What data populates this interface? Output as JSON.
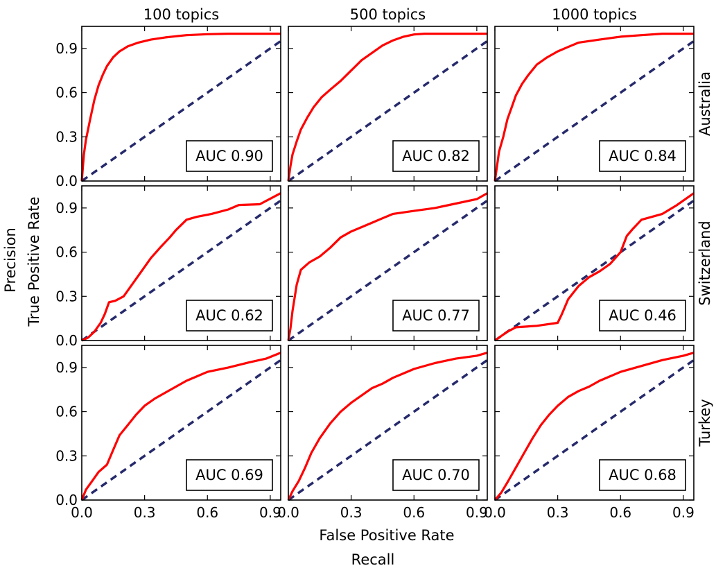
{
  "chart_data": {
    "type": "line",
    "xlabel": "False Positive Rate",
    "ylabel": "True Positive Rate",
    "outer_xlabel": "Recall",
    "outer_ylabel": "Precision",
    "xlim": [
      0,
      0.95
    ],
    "ylim": [
      0,
      1.05
    ],
    "xticks": [
      "0.0",
      "0.3",
      "0.6",
      "0.9"
    ],
    "yticks": [
      "0.0",
      "0.3",
      "0.6",
      "0.9"
    ],
    "columns": [
      "100 topics",
      "500 topics",
      "1000 topics"
    ],
    "rows": [
      "Australia",
      "Switzerland",
      "Turkey"
    ],
    "colors": {
      "roc": "#ff0000",
      "chance": "#262a6b"
    },
    "grid": false,
    "panels": [
      [
        {
          "auc": "AUC 0.90",
          "roc": [
            [
              0,
              0
            ],
            [
              0.01,
              0.18
            ],
            [
              0.02,
              0.28
            ],
            [
              0.04,
              0.42
            ],
            [
              0.06,
              0.55
            ],
            [
              0.08,
              0.65
            ],
            [
              0.1,
              0.72
            ],
            [
              0.12,
              0.78
            ],
            [
              0.15,
              0.84
            ],
            [
              0.18,
              0.88
            ],
            [
              0.22,
              0.915
            ],
            [
              0.27,
              0.94
            ],
            [
              0.33,
              0.96
            ],
            [
              0.4,
              0.975
            ],
            [
              0.5,
              0.99
            ],
            [
              0.6,
              0.997
            ],
            [
              0.7,
              1.0
            ],
            [
              0.95,
              1.0
            ]
          ]
        },
        {
          "auc": "AUC 0.82",
          "roc": [
            [
              0,
              0
            ],
            [
              0.01,
              0.1
            ],
            [
              0.02,
              0.18
            ],
            [
              0.04,
              0.27
            ],
            [
              0.06,
              0.35
            ],
            [
              0.09,
              0.43
            ],
            [
              0.12,
              0.5
            ],
            [
              0.16,
              0.57
            ],
            [
              0.2,
              0.62
            ],
            [
              0.25,
              0.68
            ],
            [
              0.3,
              0.75
            ],
            [
              0.35,
              0.82
            ],
            [
              0.4,
              0.87
            ],
            [
              0.45,
              0.92
            ],
            [
              0.5,
              0.955
            ],
            [
              0.55,
              0.98
            ],
            [
              0.6,
              0.995
            ],
            [
              0.65,
              1.0
            ],
            [
              0.95,
              1.0
            ]
          ]
        },
        {
          "auc": "AUC 0.84",
          "roc": [
            [
              0,
              0
            ],
            [
              0.01,
              0.1
            ],
            [
              0.02,
              0.2
            ],
            [
              0.04,
              0.3
            ],
            [
              0.06,
              0.42
            ],
            [
              0.08,
              0.5
            ],
            [
              0.1,
              0.58
            ],
            [
              0.13,
              0.66
            ],
            [
              0.16,
              0.72
            ],
            [
              0.2,
              0.79
            ],
            [
              0.25,
              0.84
            ],
            [
              0.3,
              0.88
            ],
            [
              0.35,
              0.91
            ],
            [
              0.4,
              0.94
            ],
            [
              0.5,
              0.96
            ],
            [
              0.6,
              0.98
            ],
            [
              0.7,
              0.99
            ],
            [
              0.8,
              1.0
            ],
            [
              0.95,
              1.0
            ]
          ]
        }
      ],
      [
        {
          "auc": "AUC 0.62",
          "roc": [
            [
              0,
              0
            ],
            [
              0.03,
              0.02
            ],
            [
              0.06,
              0.06
            ],
            [
              0.09,
              0.12
            ],
            [
              0.11,
              0.18
            ],
            [
              0.13,
              0.26
            ],
            [
              0.16,
              0.27
            ],
            [
              0.2,
              0.3
            ],
            [
              0.24,
              0.38
            ],
            [
              0.28,
              0.46
            ],
            [
              0.33,
              0.56
            ],
            [
              0.38,
              0.64
            ],
            [
              0.42,
              0.7
            ],
            [
              0.45,
              0.75
            ],
            [
              0.5,
              0.82
            ],
            [
              0.55,
              0.84
            ],
            [
              0.62,
              0.86
            ],
            [
              0.7,
              0.89
            ],
            [
              0.75,
              0.92
            ],
            [
              0.85,
              0.925
            ],
            [
              0.95,
              1.0
            ]
          ]
        },
        {
          "auc": "AUC 0.77",
          "roc": [
            [
              0,
              0
            ],
            [
              0.01,
              0.08
            ],
            [
              0.02,
              0.2
            ],
            [
              0.04,
              0.38
            ],
            [
              0.06,
              0.48
            ],
            [
              0.1,
              0.53
            ],
            [
              0.15,
              0.57
            ],
            [
              0.2,
              0.63
            ],
            [
              0.25,
              0.7
            ],
            [
              0.3,
              0.74
            ],
            [
              0.35,
              0.77
            ],
            [
              0.4,
              0.8
            ],
            [
              0.45,
              0.83
            ],
            [
              0.5,
              0.86
            ],
            [
              0.6,
              0.88
            ],
            [
              0.7,
              0.9
            ],
            [
              0.8,
              0.93
            ],
            [
              0.9,
              0.96
            ],
            [
              0.95,
              1.0
            ]
          ]
        },
        {
          "auc": "AUC 0.46",
          "roc": [
            [
              0,
              0
            ],
            [
              0.03,
              0.03
            ],
            [
              0.06,
              0.06
            ],
            [
              0.1,
              0.09
            ],
            [
              0.2,
              0.1
            ],
            [
              0.3,
              0.12
            ],
            [
              0.32,
              0.18
            ],
            [
              0.35,
              0.28
            ],
            [
              0.4,
              0.37
            ],
            [
              0.45,
              0.43
            ],
            [
              0.5,
              0.47
            ],
            [
              0.55,
              0.52
            ],
            [
              0.6,
              0.6
            ],
            [
              0.63,
              0.71
            ],
            [
              0.66,
              0.76
            ],
            [
              0.7,
              0.82
            ],
            [
              0.8,
              0.86
            ],
            [
              0.87,
              0.92
            ],
            [
              0.95,
              1.0
            ]
          ]
        }
      ],
      [
        {
          "auc": "AUC 0.69",
          "roc": [
            [
              0,
              0
            ],
            [
              0.02,
              0.07
            ],
            [
              0.05,
              0.13
            ],
            [
              0.08,
              0.19
            ],
            [
              0.12,
              0.24
            ],
            [
              0.15,
              0.34
            ],
            [
              0.18,
              0.44
            ],
            [
              0.22,
              0.51
            ],
            [
              0.26,
              0.58
            ],
            [
              0.3,
              0.64
            ],
            [
              0.35,
              0.69
            ],
            [
              0.4,
              0.73
            ],
            [
              0.45,
              0.77
            ],
            [
              0.5,
              0.81
            ],
            [
              0.55,
              0.84
            ],
            [
              0.6,
              0.87
            ],
            [
              0.7,
              0.9
            ],
            [
              0.8,
              0.935
            ],
            [
              0.88,
              0.96
            ],
            [
              0.95,
              1.0
            ]
          ]
        },
        {
          "auc": "AUC 0.70",
          "roc": [
            [
              0,
              0
            ],
            [
              0.02,
              0.06
            ],
            [
              0.05,
              0.13
            ],
            [
              0.08,
              0.22
            ],
            [
              0.11,
              0.32
            ],
            [
              0.15,
              0.42
            ],
            [
              0.2,
              0.52
            ],
            [
              0.25,
              0.6
            ],
            [
              0.3,
              0.66
            ],
            [
              0.35,
              0.71
            ],
            [
              0.4,
              0.76
            ],
            [
              0.45,
              0.79
            ],
            [
              0.5,
              0.83
            ],
            [
              0.55,
              0.86
            ],
            [
              0.6,
              0.89
            ],
            [
              0.7,
              0.93
            ],
            [
              0.8,
              0.96
            ],
            [
              0.9,
              0.98
            ],
            [
              0.95,
              1.0
            ]
          ]
        },
        {
          "auc": "AUC 0.68",
          "roc": [
            [
              0,
              0
            ],
            [
              0.03,
              0.05
            ],
            [
              0.06,
              0.12
            ],
            [
              0.1,
              0.22
            ],
            [
              0.14,
              0.32
            ],
            [
              0.18,
              0.42
            ],
            [
              0.22,
              0.51
            ],
            [
              0.26,
              0.58
            ],
            [
              0.3,
              0.64
            ],
            [
              0.35,
              0.7
            ],
            [
              0.4,
              0.74
            ],
            [
              0.45,
              0.77
            ],
            [
              0.5,
              0.81
            ],
            [
              0.55,
              0.84
            ],
            [
              0.6,
              0.87
            ],
            [
              0.7,
              0.91
            ],
            [
              0.8,
              0.95
            ],
            [
              0.9,
              0.98
            ],
            [
              0.95,
              1.0
            ]
          ]
        }
      ]
    ]
  }
}
